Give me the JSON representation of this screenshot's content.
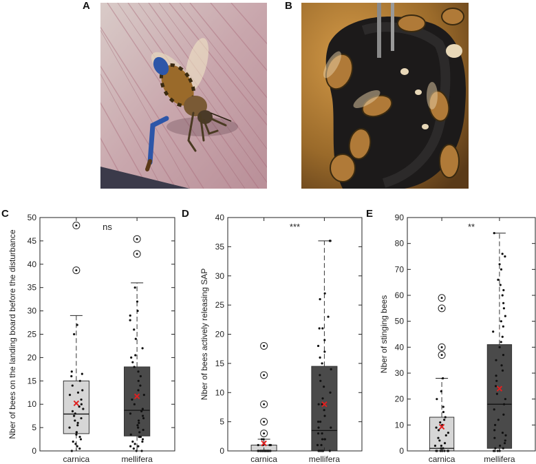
{
  "panels": {
    "a": "A",
    "b": "B",
    "c": "C",
    "d": "D",
    "e": "E"
  },
  "colors": {
    "carnica_box": "#d6d6d6",
    "mellifera_box": "#4a4a4a",
    "mean_marker": "#e02020",
    "points": "#111111"
  },
  "chart_data": [
    {
      "type": "box",
      "panel": "C",
      "ylabel": "Nber of bees on the landing board before the disturbance",
      "categories": [
        "carnica",
        "mellifera"
      ],
      "ylim": [
        0,
        50
      ],
      "yticks": [
        0,
        5,
        10,
        15,
        20,
        25,
        30,
        35,
        40,
        45,
        50
      ],
      "significance": "ns",
      "series": [
        {
          "name": "carnica",
          "q1": 3.7,
          "median": 7.9,
          "q3": 15.0,
          "whisker_low": 0,
          "whisker_high": 29,
          "mean": 10.2,
          "outliers": [
            38.7,
            48.3
          ],
          "points": [
            0,
            0.5,
            1,
            1.5,
            2,
            2.5,
            3,
            3.5,
            4,
            4,
            5,
            5.5,
            6,
            6.5,
            7,
            7.5,
            8,
            8.5,
            9,
            9.5,
            10,
            11,
            12,
            12.5,
            13,
            14,
            15,
            16,
            16.5,
            17,
            25,
            27
          ]
        },
        {
          "name": "mellifera",
          "q1": 3.2,
          "median": 8.7,
          "q3": 18.0,
          "whisker_low": 0,
          "whisker_high": 36,
          "mean": 11.7,
          "outliers": [
            42.2,
            45.4
          ],
          "points": [
            0,
            0,
            0.5,
            1,
            1,
            1.5,
            2,
            2,
            2.5,
            3,
            3,
            3.5,
            4,
            4.5,
            5,
            5.5,
            6,
            6.5,
            7,
            7.5,
            8,
            8.5,
            9,
            10,
            11,
            12,
            13,
            14,
            15,
            16,
            17,
            18,
            19,
            20,
            20.5,
            22,
            24,
            26,
            28,
            29,
            30,
            32,
            35
          ]
        }
      ]
    },
    {
      "type": "box",
      "panel": "D",
      "ylabel": "Nber of bees actively releasing SAP",
      "categories": [
        "carnica",
        "mellifera"
      ],
      "ylim": [
        0,
        40
      ],
      "yticks": [
        0,
        5,
        10,
        15,
        20,
        25,
        30,
        35,
        40
      ],
      "significance": "***",
      "series": [
        {
          "name": "carnica",
          "q1": 0,
          "median": 0,
          "q3": 1,
          "whisker_low": 0,
          "whisker_high": 2,
          "mean": 1.3,
          "outliers": [
            3,
            5,
            8,
            13,
            18
          ],
          "points": [
            0,
            0,
            0,
            0,
            0,
            0,
            0,
            0,
            0,
            0,
            0,
            0,
            0,
            0,
            0,
            0,
            1,
            1,
            1,
            1,
            2,
            2
          ]
        },
        {
          "name": "mellifera",
          "q1": 0,
          "median": 3.5,
          "q3": 14.5,
          "whisker_low": 0,
          "whisker_high": 36,
          "mean": 8.0,
          "outliers": [],
          "points": [
            0,
            0,
            0,
            0,
            0,
            0,
            1,
            1,
            1,
            2,
            2,
            2,
            3,
            3,
            4,
            4,
            5,
            5,
            6,
            7,
            8,
            8,
            9,
            10,
            11,
            12,
            13,
            14,
            15,
            16,
            17,
            18,
            19,
            21,
            21,
            23,
            26,
            27,
            36,
            36
          ]
        }
      ]
    },
    {
      "type": "box",
      "panel": "E",
      "ylabel": "Nber of stinging bees",
      "categories": [
        "carnica",
        "mellifera"
      ],
      "ylim": [
        0,
        90
      ],
      "yticks": [
        0,
        10,
        20,
        30,
        40,
        50,
        60,
        70,
        80,
        90
      ],
      "significance": "**",
      "series": [
        {
          "name": "carnica",
          "q1": 0,
          "median": 1,
          "q3": 13,
          "whisker_low": 0,
          "whisker_high": 28,
          "mean": 9.3,
          "outliers": [
            37,
            40,
            55,
            59
          ],
          "points": [
            0,
            0,
            0,
            0,
            0,
            0,
            0,
            0,
            1,
            1,
            2,
            2,
            3,
            4,
            5,
            6,
            7,
            8,
            9,
            10,
            11,
            12,
            13,
            15,
            17,
            20,
            23,
            28
          ]
        },
        {
          "name": "mellifera",
          "q1": 1,
          "median": 18,
          "q3": 41,
          "whisker_low": 0,
          "whisker_high": 84,
          "mean": 24,
          "outliers": [],
          "points": [
            0,
            0,
            0,
            0,
            1,
            1,
            2,
            3,
            4,
            5,
            6,
            7,
            8,
            10,
            12,
            14,
            16,
            18,
            20,
            22,
            24,
            25,
            27,
            29,
            31,
            33,
            35,
            37,
            40,
            42,
            44,
            46,
            48,
            50,
            52,
            55,
            57,
            60,
            62,
            64,
            66,
            70,
            72,
            75,
            76,
            84
          ]
        }
      ]
    }
  ]
}
